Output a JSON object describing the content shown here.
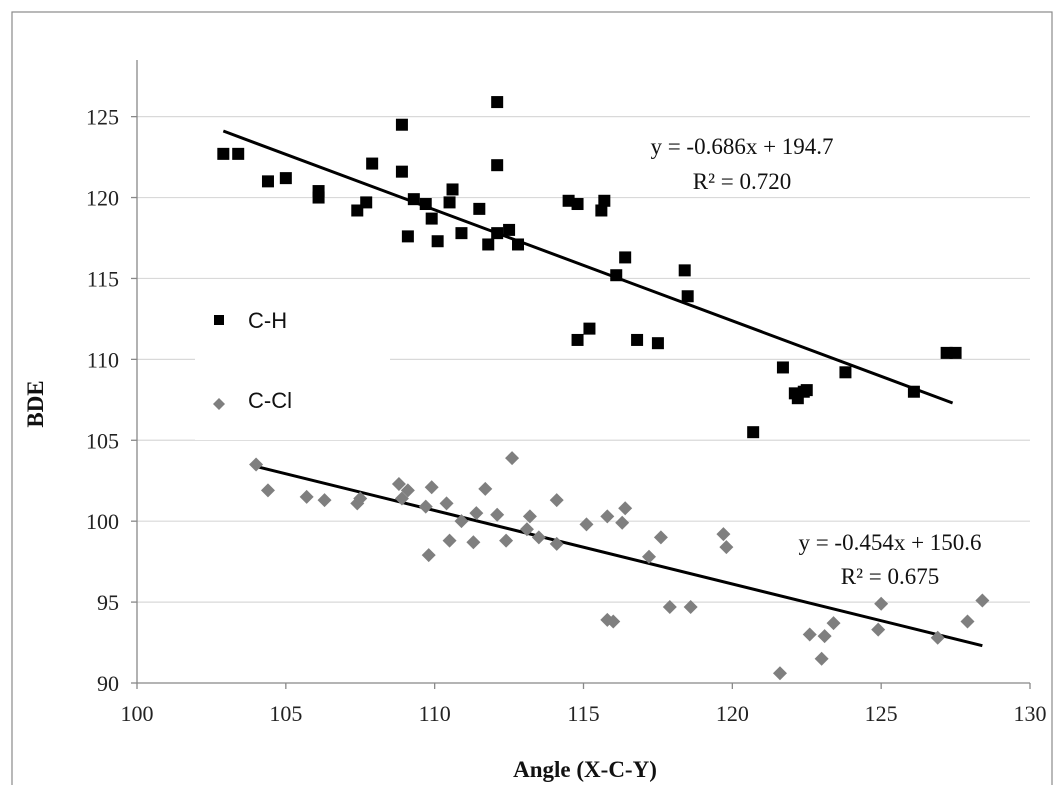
{
  "chart_data": {
    "type": "scatter",
    "xlabel": "Angle (X-C-Y)",
    "ylabel": "BDE",
    "xlim": [
      100,
      130
    ],
    "ylim": [
      90,
      128.5
    ],
    "xticks": [
      100,
      105,
      110,
      115,
      120,
      125,
      130
    ],
    "yticks": [
      90,
      95,
      100,
      105,
      110,
      115,
      120,
      125
    ],
    "grid": "horizontal",
    "legend_position": "left",
    "series": [
      {
        "name": "C-H",
        "marker": "square",
        "color": "#000000",
        "points": [
          [
            102.9,
            122.7
          ],
          [
            103.4,
            122.7
          ],
          [
            104.4,
            121.0
          ],
          [
            105.0,
            121.2
          ],
          [
            106.1,
            120.4
          ],
          [
            106.1,
            120.0
          ],
          [
            107.4,
            119.2
          ],
          [
            107.7,
            119.7
          ],
          [
            107.9,
            122.1
          ],
          [
            108.9,
            124.5
          ],
          [
            108.9,
            121.6
          ],
          [
            109.1,
            117.6
          ],
          [
            109.3,
            119.9
          ],
          [
            109.7,
            119.6
          ],
          [
            109.9,
            118.7
          ],
          [
            110.1,
            117.3
          ],
          [
            110.5,
            119.7
          ],
          [
            110.6,
            120.5
          ],
          [
            110.9,
            117.8
          ],
          [
            111.5,
            119.3
          ],
          [
            111.8,
            117.1
          ],
          [
            112.1,
            125.9
          ],
          [
            112.1,
            122.0
          ],
          [
            112.1,
            117.8
          ],
          [
            112.5,
            118.0
          ],
          [
            112.8,
            117.1
          ],
          [
            114.5,
            119.8
          ],
          [
            114.8,
            119.6
          ],
          [
            114.8,
            111.2
          ],
          [
            115.2,
            111.9
          ],
          [
            115.6,
            119.2
          ],
          [
            115.7,
            119.8
          ],
          [
            116.1,
            115.2
          ],
          [
            116.4,
            116.3
          ],
          [
            116.8,
            111.2
          ],
          [
            117.5,
            111.0
          ],
          [
            118.4,
            115.5
          ],
          [
            118.5,
            113.9
          ],
          [
            120.7,
            105.5
          ],
          [
            121.7,
            109.5
          ],
          [
            122.1,
            107.9
          ],
          [
            122.2,
            107.6
          ],
          [
            122.4,
            108.0
          ],
          [
            122.5,
            108.1
          ],
          [
            123.8,
            109.2
          ],
          [
            126.1,
            108.0
          ],
          [
            127.2,
            110.4
          ],
          [
            127.5,
            110.4
          ]
        ],
        "trendline": {
          "x_range": [
            102.9,
            127.4
          ],
          "slope": -0.686,
          "intercept": 194.7
        },
        "equation": "y = -0.686x + 194.7",
        "r_squared": "R² = 0.720"
      },
      {
        "name": "C-Cl",
        "marker": "diamond",
        "color": "#7f7f7f",
        "points": [
          [
            104.0,
            103.5
          ],
          [
            104.4,
            101.9
          ],
          [
            105.7,
            101.5
          ],
          [
            106.3,
            101.3
          ],
          [
            107.4,
            101.1
          ],
          [
            107.5,
            101.4
          ],
          [
            108.8,
            102.3
          ],
          [
            108.9,
            101.4
          ],
          [
            109.1,
            101.9
          ],
          [
            109.7,
            100.9
          ],
          [
            109.8,
            97.9
          ],
          [
            109.9,
            102.1
          ],
          [
            110.4,
            101.1
          ],
          [
            110.5,
            98.8
          ],
          [
            110.9,
            100.0
          ],
          [
            111.3,
            98.7
          ],
          [
            111.4,
            100.5
          ],
          [
            111.7,
            102.0
          ],
          [
            112.1,
            100.4
          ],
          [
            112.4,
            98.8
          ],
          [
            112.6,
            103.9
          ],
          [
            113.1,
            99.5
          ],
          [
            113.2,
            100.3
          ],
          [
            113.5,
            99.0
          ],
          [
            114.1,
            98.6
          ],
          [
            114.1,
            101.3
          ],
          [
            115.1,
            99.8
          ],
          [
            115.8,
            100.3
          ],
          [
            115.8,
            93.9
          ],
          [
            116.0,
            93.8
          ],
          [
            116.3,
            99.9
          ],
          [
            116.4,
            100.8
          ],
          [
            117.2,
            97.8
          ],
          [
            117.6,
            99.0
          ],
          [
            117.9,
            94.7
          ],
          [
            118.6,
            94.7
          ],
          [
            119.7,
            99.2
          ],
          [
            119.8,
            98.4
          ],
          [
            121.6,
            90.6
          ],
          [
            122.6,
            93.0
          ],
          [
            123.0,
            91.5
          ],
          [
            123.1,
            92.9
          ],
          [
            123.4,
            93.7
          ],
          [
            124.9,
            93.3
          ],
          [
            125.0,
            94.9
          ],
          [
            126.9,
            92.8
          ],
          [
            127.9,
            93.8
          ],
          [
            128.4,
            95.1
          ]
        ],
        "trendline": {
          "x_range": [
            104.0,
            128.4
          ],
          "slope": -0.454,
          "intercept": 150.6
        },
        "equation": "y = -0.454x + 150.6",
        "r_squared": "R² = 0.675"
      }
    ]
  }
}
